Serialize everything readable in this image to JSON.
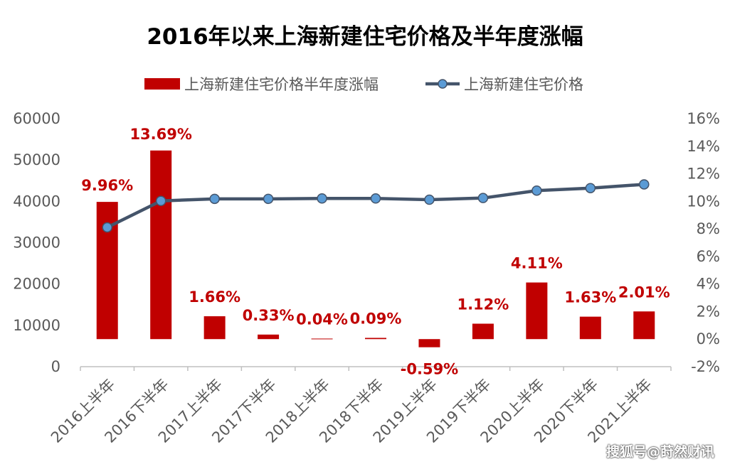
{
  "chart_data": {
    "type": "bar+line",
    "title": "2016年以来上海新建住宅价格及半年度涨幅",
    "categories": [
      "2016上半年",
      "2016下半年",
      "2017上半年",
      "2017下半年",
      "2018上半年",
      "2018下半年",
      "2019上半年",
      "2019下半年",
      "2020上半年",
      "2020下半年",
      "2021上半年"
    ],
    "series": [
      {
        "name": "上海新建住宅价格半年度涨幅",
        "kind": "bar",
        "axis": "right",
        "values": [
          9.96,
          13.69,
          1.66,
          0.33,
          0.04,
          0.09,
          -0.59,
          1.12,
          4.11,
          1.63,
          2.01
        ],
        "labels": [
          "9.96%",
          "13.69%",
          "1.66%",
          "0.33%",
          "0.04%",
          "0.09%",
          "-0.59%",
          "1.12%",
          "4.11%",
          "1.63%",
          "2.01%"
        ],
        "color": "#c00000"
      },
      {
        "name": "上海新建住宅价格",
        "kind": "line",
        "axis": "left",
        "values": [
          33700,
          40100,
          40600,
          40600,
          40700,
          40700,
          40400,
          40800,
          42600,
          43200,
          44100
        ],
        "color": "#44546a",
        "marker_color": "#5b9bd5"
      }
    ],
    "y_left": {
      "min": 0,
      "max": 60000,
      "ticks": [
        "0",
        "10000",
        "20000",
        "30000",
        "40000",
        "50000",
        "60000"
      ]
    },
    "y_right": {
      "min": -2,
      "max": 16,
      "ticks": [
        "-2%",
        "0%",
        "2%",
        "4%",
        "6%",
        "8%",
        "10%",
        "12%",
        "14%",
        "16%"
      ]
    },
    "legend_position": "top",
    "grid": false
  },
  "watermark": "搜狐号@莳然财讯"
}
